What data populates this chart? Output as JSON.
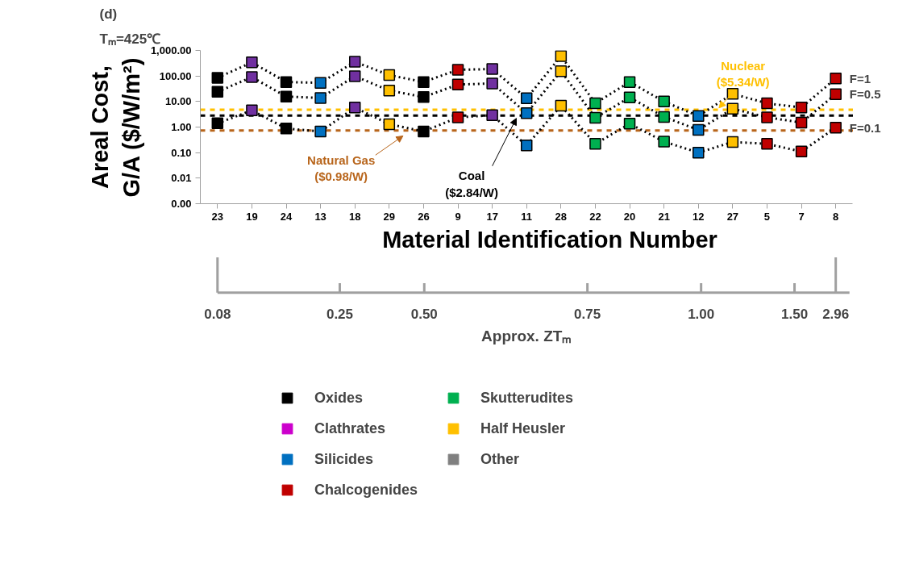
{
  "chart_data": [
    {
      "type": "line",
      "title": "(d)",
      "subtitle": "Tₘ=425℃",
      "xlabel": "Material Identification Number",
      "ylabel": "Areal Cost,\nG/A ($/W/m²)",
      "categories": [
        "23",
        "19",
        "24",
        "13",
        "18",
        "29",
        "26",
        "9",
        "17",
        "11",
        "28",
        "22",
        "20",
        "21",
        "12",
        "27",
        "5",
        "7",
        "8"
      ],
      "log": "y",
      "ylim": [
        0.001,
        1000
      ],
      "yticks": [
        {
          "value": 0.001,
          "label": "0.00"
        },
        {
          "value": 0.01,
          "label": "0.01"
        },
        {
          "value": 0.1,
          "label": "0.10"
        },
        {
          "value": 1,
          "label": "1.00"
        },
        {
          "value": 10,
          "label": "10.00"
        },
        {
          "value": 100,
          "label": "100.00"
        },
        {
          "value": 1000,
          "label": "1,000.00"
        }
      ],
      "marker": "square",
      "line_style": "dotted",
      "legend": "bottom",
      "series": [
        {
          "name": "F=1",
          "color": "#000000",
          "values": [
            85,
            340,
            58,
            54,
            360,
            108,
            58,
            175,
            187,
            13.4,
            600,
            8.6,
            58,
            10,
            2.7,
            20,
            8.5,
            5.8,
            80
          ],
          "colors": [
            "#000000",
            "#7030a0",
            "#000000",
            "#0070c0",
            "#7030a0",
            "#ffc000",
            "#000000",
            "#c00000",
            "#7030a0",
            "#0070c0",
            "#ffc000",
            "#00b050",
            "#00b050",
            "#00b050",
            "#0070c0",
            "#ffc000",
            "#c00000",
            "#c00000",
            "#c00000"
          ]
        },
        {
          "name": "F=0.5",
          "color": "#000000",
          "values": [
            24,
            90,
            15.6,
            13.7,
            98,
            27,
            15,
            46,
            51,
            3.5,
            155,
            2.3,
            14.5,
            2.5,
            0.77,
            5.2,
            2.4,
            1.5,
            19.4
          ],
          "colors": [
            "#000000",
            "#7030a0",
            "#000000",
            "#0070c0",
            "#7030a0",
            "#ffc000",
            "#000000",
            "#c00000",
            "#7030a0",
            "#0070c0",
            "#ffc000",
            "#00b050",
            "#00b050",
            "#00b050",
            "#0070c0",
            "#ffc000",
            "#c00000",
            "#c00000",
            "#c00000"
          ]
        },
        {
          "name": "F=0.1",
          "color": "#000000",
          "values": [
            1.4,
            4.5,
            0.88,
            0.67,
            5.8,
            1.3,
            0.67,
            2.4,
            2.9,
            0.19,
            6.9,
            0.22,
            1.35,
            0.27,
            0.1,
            0.26,
            0.22,
            0.11,
            0.95
          ],
          "colors": [
            "#000000",
            "#7030a0",
            "#000000",
            "#0070c0",
            "#7030a0",
            "#ffc000",
            "#000000",
            "#c00000",
            "#7030a0",
            "#0070c0",
            "#ffc000",
            "#00b050",
            "#00b050",
            "#00b050",
            "#0070c0",
            "#ffc000",
            "#c00000",
            "#c00000",
            "#c00000"
          ]
        },
        {
          "name": "Oxides",
          "type": "scatter",
          "color": "#000000",
          "values": [
            null,
            null,
            null,
            null,
            null,
            null,
            null,
            null,
            null,
            null,
            null,
            null,
            null,
            null,
            null,
            null,
            null,
            null,
            null
          ]
        },
        {
          "name": "Clathrates",
          "type": "scatter",
          "color": "#cc00cc",
          "values": [
            null,
            null,
            null,
            null,
            null,
            null,
            null,
            null,
            null,
            null,
            null,
            null,
            null,
            null,
            null,
            null,
            null,
            null,
            null
          ]
        },
        {
          "name": "Silicides",
          "type": "scatter",
          "color": "#0070c0",
          "values": [
            null,
            null,
            null,
            null,
            null,
            null,
            null,
            null,
            null,
            null,
            null,
            null,
            null,
            null,
            null,
            null,
            null,
            null,
            null
          ]
        },
        {
          "name": "Chalcogenides",
          "type": "scatter",
          "color": "#c00000",
          "values": [
            null,
            null,
            null,
            null,
            null,
            null,
            null,
            null,
            null,
            null,
            null,
            null,
            null,
            null,
            null,
            null,
            null,
            null,
            null
          ]
        },
        {
          "name": "Skutterudites",
          "type": "scatter",
          "color": "#00b050",
          "values": [
            null,
            null,
            null,
            null,
            null,
            null,
            null,
            null,
            null,
            null,
            null,
            null,
            null,
            null,
            null,
            null,
            null,
            null,
            null
          ]
        },
        {
          "name": "Half Heusler",
          "type": "scatter",
          "color": "#ffc000",
          "values": [
            null,
            null,
            null,
            null,
            null,
            null,
            null,
            null,
            null,
            null,
            null,
            null,
            null,
            null,
            null,
            null,
            null,
            null,
            null
          ]
        },
        {
          "name": "Other",
          "type": "scatter",
          "color": "#808080",
          "values": [
            null,
            null,
            null,
            null,
            null,
            null,
            null,
            null,
            null,
            null,
            null,
            null,
            null,
            null,
            null,
            null,
            null,
            null,
            null
          ]
        }
      ],
      "ref_lines": [
        {
          "axis": "y",
          "value": 4.8,
          "label": "Nuclear\n($5.34/W)",
          "color": "#ffc000",
          "line_style": "dashed"
        },
        {
          "axis": "y",
          "value": 2.8,
          "label": "Coal\n($2.84/W)",
          "color": "#000000",
          "line_style": "dashed"
        },
        {
          "axis": "y",
          "value": 0.73,
          "label": "Natural Gas\n($0.98/W)",
          "color": "#b8651b",
          "line_style": "dashed"
        }
      ]
    },
    {
      "type": "other",
      "xlabel": "Approx. ZTₘ",
      "annotations": [
        "0.08",
        "0.25",
        "0.50",
        "0.75",
        "1.00",
        "1.50",
        "2.96"
      ]
    }
  ]
}
